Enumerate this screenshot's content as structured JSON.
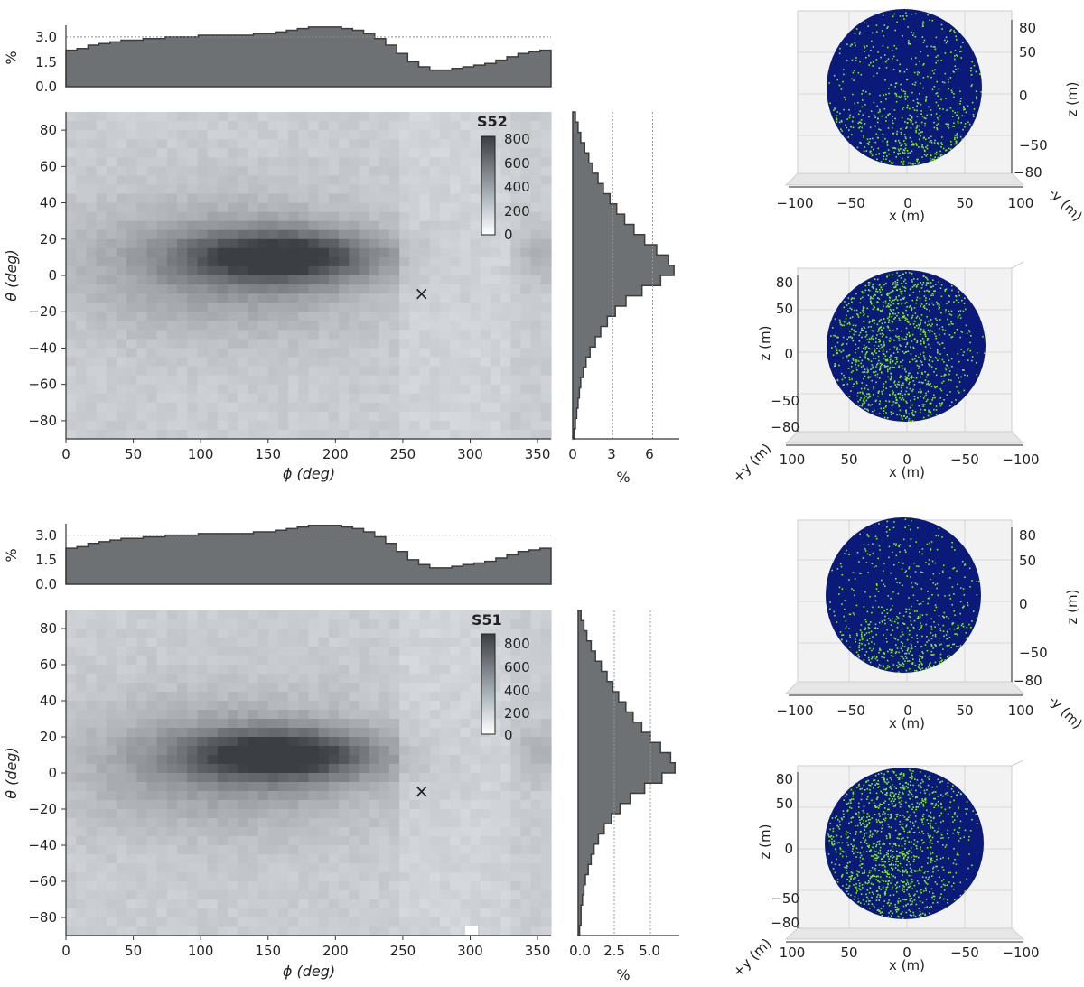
{
  "chart_data": [
    {
      "type": "heatmap",
      "panel_label": "S52",
      "xlabel": "ϕ (deg)",
      "ylabel": "θ (deg)",
      "xlim": [
        0,
        360
      ],
      "ylim": [
        -90,
        90
      ],
      "xticks": [
        "0",
        "50",
        "100",
        "150",
        "200",
        "250",
        "300",
        "350"
      ],
      "yticks": [
        "80",
        "60",
        "40",
        "20",
        "0",
        "−20",
        "−40",
        "−60",
        "−80"
      ],
      "colorbar": {
        "ticks": [
          "800",
          "600",
          "400",
          "200",
          "0"
        ],
        "range": [
          0,
          800
        ]
      },
      "marker": {
        "symbol": "×",
        "phi": 264,
        "theta": -10,
        "color": "#e02020"
      },
      "top_hist": {
        "ylabel": "%",
        "yticks": [
          "3.0",
          "1.5",
          "0.0"
        ],
        "ylim": [
          0,
          3.7
        ],
        "refline": 3.0,
        "values": [
          2.2,
          2.3,
          2.5,
          2.6,
          2.7,
          2.8,
          2.8,
          2.9,
          2.9,
          3.0,
          3.0,
          3.0,
          3.1,
          3.1,
          3.1,
          3.1,
          3.1,
          3.2,
          3.2,
          3.3,
          3.4,
          3.5,
          3.6,
          3.6,
          3.6,
          3.5,
          3.4,
          3.2,
          2.9,
          2.5,
          2.0,
          1.5,
          1.2,
          1.0,
          1.0,
          1.1,
          1.2,
          1.3,
          1.4,
          1.6,
          1.8,
          2.0,
          2.1,
          2.2
        ]
      },
      "right_hist": {
        "xlabel": "%",
        "xticks": [
          "0",
          "3",
          "6"
        ],
        "xlim": [
          0,
          8
        ],
        "reflines": [
          3,
          6
        ],
        "values": [
          0.2,
          0.4,
          0.6,
          0.9,
          1.2,
          1.5,
          1.9,
          2.3,
          2.8,
          3.3,
          3.9,
          4.6,
          5.4,
          6.3,
          7.2,
          7.6,
          6.6,
          5.2,
          4.0,
          3.2,
          2.6,
          2.1,
          1.7,
          1.3,
          1.0,
          0.8,
          0.6,
          0.5,
          0.4,
          0.3,
          0.2,
          0.1
        ]
      }
    },
    {
      "type": "heatmap",
      "panel_label": "S51",
      "xlabel": "ϕ (deg)",
      "ylabel": "θ (deg)",
      "xlim": [
        0,
        360
      ],
      "ylim": [
        -90,
        90
      ],
      "xticks": [
        "0",
        "50",
        "100",
        "150",
        "200",
        "250",
        "300",
        "350"
      ],
      "yticks": [
        "80",
        "60",
        "40",
        "20",
        "0",
        "−20",
        "−40",
        "−60",
        "−80"
      ],
      "colorbar": {
        "ticks": [
          "800",
          "600",
          "400",
          "200",
          "0"
        ],
        "range": [
          0,
          850
        ]
      },
      "marker": {
        "symbol": "×",
        "phi": 264,
        "theta": -10,
        "color": "#e02020"
      },
      "top_hist": {
        "ylabel": "%",
        "yticks": [
          "3.0",
          "1.5",
          "0.0"
        ],
        "ylim": [
          0,
          3.7
        ],
        "refline": 3.0,
        "values": [
          2.2,
          2.3,
          2.5,
          2.6,
          2.7,
          2.8,
          2.8,
          2.9,
          2.9,
          3.0,
          3.0,
          3.0,
          3.1,
          3.1,
          3.1,
          3.1,
          3.1,
          3.2,
          3.2,
          3.3,
          3.4,
          3.5,
          3.6,
          3.6,
          3.6,
          3.5,
          3.4,
          3.2,
          2.9,
          2.5,
          2.0,
          1.5,
          1.2,
          1.0,
          1.0,
          1.1,
          1.2,
          1.3,
          1.4,
          1.6,
          1.8,
          2.0,
          2.1,
          2.2
        ]
      },
      "right_hist": {
        "xlabel": "%",
        "xticks": [
          "0.0",
          "2.5",
          "5.0"
        ],
        "xlim": [
          0,
          7
        ],
        "reflines": [
          2.5,
          5.0
        ],
        "values": [
          0.2,
          0.4,
          0.6,
          0.9,
          1.2,
          1.6,
          2.0,
          2.4,
          2.8,
          3.3,
          3.8,
          4.4,
          5.0,
          5.7,
          6.4,
          6.7,
          5.8,
          4.6,
          3.6,
          2.9,
          2.3,
          1.8,
          1.4,
          1.1,
          0.9,
          0.7,
          0.5,
          0.4,
          0.3,
          0.2,
          0.2,
          0.1
        ]
      }
    }
  ],
  "sphere_views": [
    {
      "xlabel": "x (m)",
      "ylabel": "z (m)",
      "depthlabel": "-y (m)",
      "xticks": [
        "−100",
        "−50",
        "0",
        "50",
        "100"
      ],
      "zticks": [
        "80",
        "50",
        "0",
        "−50",
        "−80"
      ]
    },
    {
      "xlabel": "x (m)",
      "ylabel": "z (m)",
      "depthlabel": "+y (m)",
      "xticks": [
        "100",
        "50",
        "0",
        "−50",
        "−100"
      ],
      "zticks": [
        "80",
        "50",
        "0",
        "−50",
        "−80"
      ]
    },
    {
      "xlabel": "x (m)",
      "ylabel": "z (m)",
      "depthlabel": "-y (m)",
      "xticks": [
        "−100",
        "−50",
        "0",
        "50",
        "100"
      ],
      "zticks": [
        "80",
        "50",
        "0",
        "−50",
        "−80"
      ]
    },
    {
      "xlabel": "x (m)",
      "ylabel": "z (m)",
      "depthlabel": "+y (m)",
      "xticks": [
        "100",
        "50",
        "0",
        "−50",
        "−100"
      ],
      "zticks": [
        "80",
        "50",
        "0",
        "−50",
        "−80"
      ]
    }
  ],
  "colors": {
    "hist_fill": "#6e7173",
    "hist_edge": "#3a3c3e",
    "heat_low": "#d9dde1",
    "heat_high": "#3b3e42",
    "sphere_base": "#0b1a78",
    "sphere_points": "#7ef01a",
    "marker": "#e02020"
  }
}
